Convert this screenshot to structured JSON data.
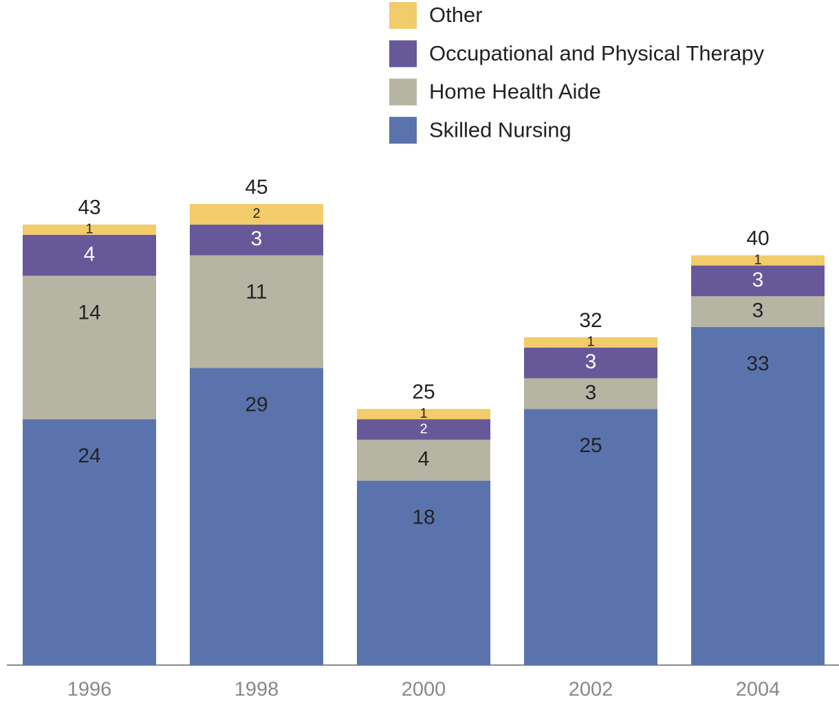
{
  "chart_data": {
    "type": "stacked_bar",
    "categories": [
      "1996",
      "1998",
      "2000",
      "2002",
      "2004"
    ],
    "series": [
      {
        "name": "Skilled Nursing",
        "color": "#5b73ad",
        "values": [
          24,
          29,
          18,
          25,
          33
        ]
      },
      {
        "name": "Home Health Aide",
        "color": "#b6b5a3",
        "values": [
          14,
          11,
          4,
          3,
          3
        ]
      },
      {
        "name": "Occupational and Physical Therapy",
        "color": "#67589a",
        "values": [
          4,
          3,
          2,
          3,
          3
        ]
      },
      {
        "name": "Other",
        "color": "#f2cb6b",
        "values": [
          1,
          2,
          1,
          1,
          1
        ]
      }
    ],
    "totals": [
      43,
      45,
      25,
      32,
      40
    ],
    "ylim": [
      0,
      45
    ]
  }
}
